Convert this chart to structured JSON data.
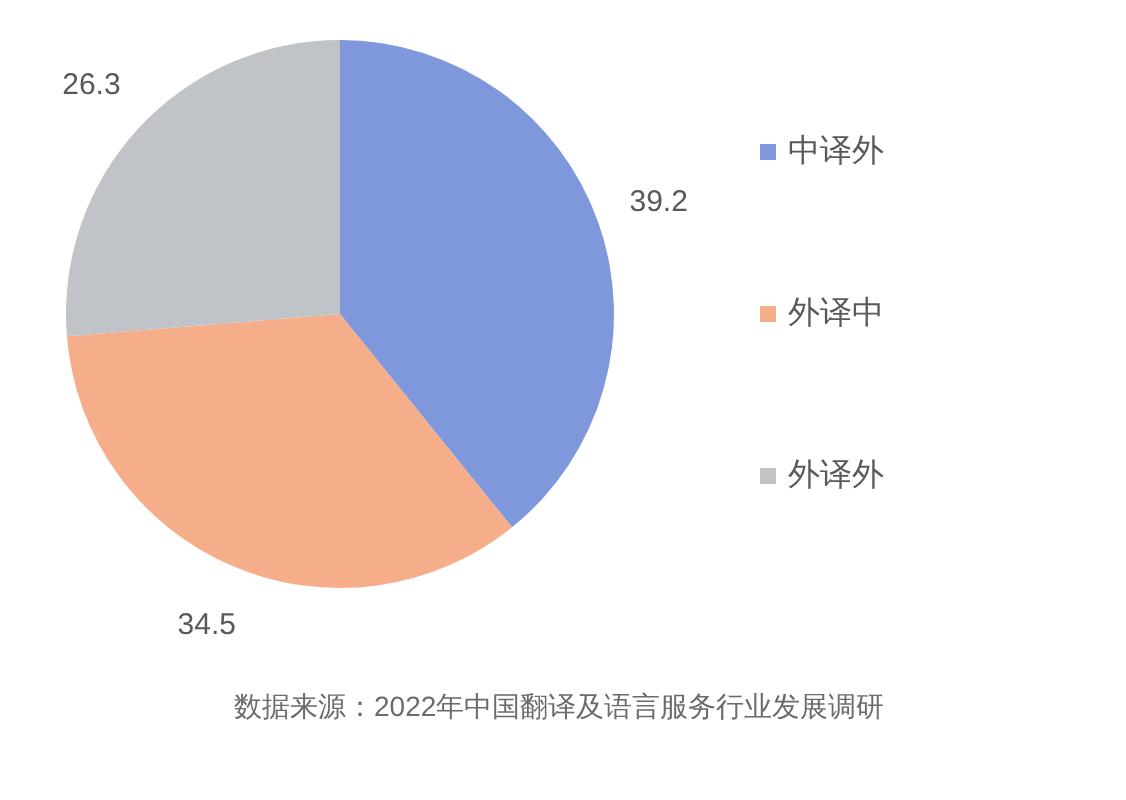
{
  "chart_data": {
    "type": "pie",
    "categories": [
      "中译外",
      "外译中",
      "外译外"
    ],
    "values": [
      39.2,
      34.5,
      26.3
    ],
    "colors": [
      "#7f98dc",
      "#f6ae8a",
      "#c0c3c8"
    ],
    "data_labels": true,
    "legend": "right",
    "annotations": [
      "数据来源：2022年中国翻译及语言服务行业发展调研"
    ]
  }
}
